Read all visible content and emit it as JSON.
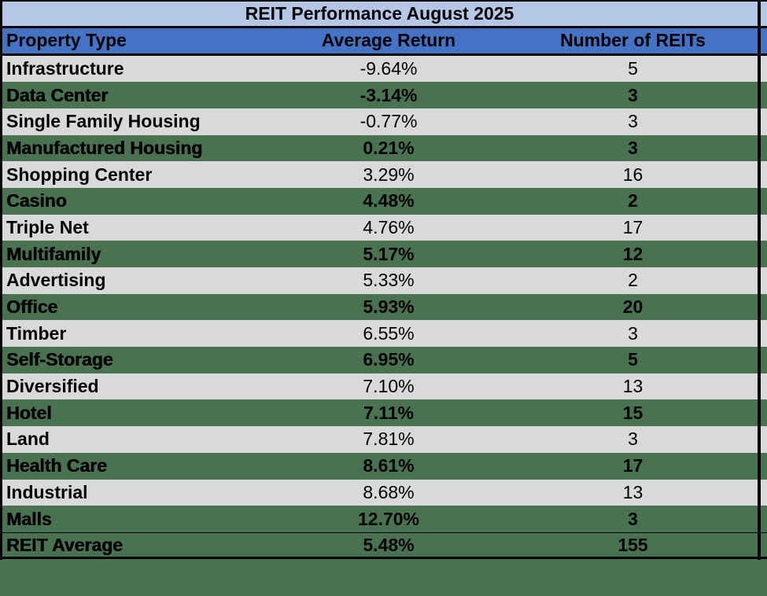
{
  "title_bar": {
    "text": "REIT Performance August 2025"
  },
  "header": {
    "col_property": "Property Type",
    "col_return": "Average Return",
    "col_count": "Number of REITs"
  },
  "rows": [
    {
      "property": "Infrastructure",
      "return": "-9.64%",
      "count": "5",
      "variant": "gray"
    },
    {
      "property": "Data Center",
      "return": "-3.14%",
      "count": "3",
      "variant": "green"
    },
    {
      "property": "Single Family Housing",
      "return": "-0.77%",
      "count": "3",
      "variant": "gray"
    },
    {
      "property": "Manufactured Housing",
      "return": "0.21%",
      "count": "3",
      "variant": "green"
    },
    {
      "property": "Shopping Center",
      "return": "3.29%",
      "count": "16",
      "variant": "gray"
    },
    {
      "property": "Casino",
      "return": "4.48%",
      "count": "2",
      "variant": "green"
    },
    {
      "property": "Triple Net",
      "return": "4.76%",
      "count": "17",
      "variant": "gray"
    },
    {
      "property": "Multifamily",
      "return": "5.17%",
      "count": "12",
      "variant": "green"
    },
    {
      "property": "Advertising",
      "return": "5.33%",
      "count": "2",
      "variant": "gray"
    },
    {
      "property": "Office",
      "return": "5.93%",
      "count": "20",
      "variant": "green"
    },
    {
      "property": "Timber",
      "return": "6.55%",
      "count": "3",
      "variant": "gray"
    },
    {
      "property": "Self-Storage",
      "return": "6.95%",
      "count": "5",
      "variant": "green"
    },
    {
      "property": "Diversified",
      "return": "7.10%",
      "count": "13",
      "variant": "gray"
    },
    {
      "property": "Hotel",
      "return": "7.11%",
      "count": "15",
      "variant": "green"
    },
    {
      "property": "Land",
      "return": "7.81%",
      "count": "3",
      "variant": "gray"
    },
    {
      "property": "Health Care",
      "return": "8.61%",
      "count": "17",
      "variant": "green"
    },
    {
      "property": "Industrial",
      "return": "8.68%",
      "count": "13",
      "variant": "gray"
    },
    {
      "property": "Malls",
      "return": "12.70%",
      "count": "3",
      "variant": "green"
    },
    {
      "property": "REIT Average",
      "return": "5.48%",
      "count": "155",
      "variant": "green",
      "total": true
    }
  ],
  "colors": {
    "title_bg": "#b4c7e7",
    "header_bg": "#4472c4",
    "row_gray": "#d9d9d9",
    "row_green": "#487250",
    "border": "#000000"
  },
  "chart_data": {
    "type": "table",
    "title": "REIT Performance August 2025",
    "columns": [
      "Property Type",
      "Average Return",
      "Number of REITs"
    ],
    "rows": [
      [
        "Infrastructure",
        -9.64,
        5
      ],
      [
        "Data Center",
        -3.14,
        3
      ],
      [
        "Single Family Housing",
        -0.77,
        3
      ],
      [
        "Manufactured Housing",
        0.21,
        3
      ],
      [
        "Shopping Center",
        3.29,
        16
      ],
      [
        "Casino",
        4.48,
        2
      ],
      [
        "Triple Net",
        4.76,
        17
      ],
      [
        "Multifamily",
        5.17,
        12
      ],
      [
        "Advertising",
        5.33,
        2
      ],
      [
        "Office",
        5.93,
        20
      ],
      [
        "Timber",
        6.55,
        3
      ],
      [
        "Self-Storage",
        6.95,
        5
      ],
      [
        "Diversified",
        7.1,
        13
      ],
      [
        "Hotel",
        7.11,
        15
      ],
      [
        "Land",
        7.81,
        3
      ],
      [
        "Health Care",
        8.61,
        17
      ],
      [
        "Industrial",
        8.68,
        13
      ],
      [
        "Malls",
        12.7,
        3
      ],
      [
        "REIT Average",
        5.48,
        155
      ]
    ],
    "notes": "Rows alternate light-gray / green fill; bold green rows; REIT Average is total row"
  }
}
